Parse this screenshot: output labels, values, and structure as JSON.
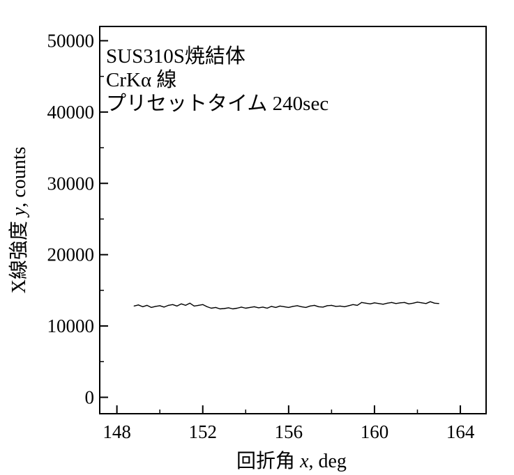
{
  "chart_data": {
    "type": "line",
    "annotations": [
      "SUS310S焼結体",
      "CrKα 線",
      "プリセットタイム 240sec"
    ],
    "xlabel": {
      "prefix": "回折角 ",
      "var": "x",
      "suffix": ", deg"
    },
    "ylabel": {
      "prefix": "X線強度 ",
      "var": "y",
      "suffix": ", counts"
    },
    "xlim": [
      147.2,
      165.2
    ],
    "ylim": [
      -2300,
      52000
    ],
    "xticks": [
      148,
      152,
      156,
      160,
      164
    ],
    "xtick_labels": [
      "148",
      "152",
      "156",
      "160",
      "164"
    ],
    "yticks": [
      0,
      10000,
      20000,
      30000,
      40000,
      50000
    ],
    "ytick_labels": [
      "0",
      "10000",
      "20000",
      "30000",
      "40000",
      "50000"
    ],
    "grid": false,
    "series": [
      {
        "x": [
          148.8,
          149.0,
          149.2,
          149.4,
          149.6,
          149.8,
          150.0,
          150.2,
          150.4,
          150.6,
          150.8,
          151.0,
          151.2,
          151.4,
          151.6,
          151.8,
          152.0,
          152.2,
          152.4,
          152.6,
          152.8,
          153.0,
          153.2,
          153.4,
          153.6,
          153.8,
          154.0,
          154.2,
          154.4,
          154.6,
          154.8,
          155.0,
          155.2,
          155.4,
          155.6,
          155.8,
          156.0,
          156.2,
          156.4,
          156.6,
          156.8,
          157.0,
          157.2,
          157.4,
          157.6,
          157.8,
          158.0,
          158.2,
          158.4,
          158.6,
          158.8,
          159.0,
          159.2,
          159.4,
          159.6,
          159.8,
          160.0,
          160.2,
          160.4,
          160.6,
          160.8,
          161.0,
          161.2,
          161.4,
          161.6,
          161.8,
          162.0,
          162.2,
          162.4,
          162.6,
          162.8,
          163.0
        ],
        "y": [
          12800,
          12950,
          12700,
          12900,
          12600,
          12750,
          12850,
          12650,
          12900,
          13000,
          12800,
          13100,
          12900,
          13200,
          12800,
          12900,
          13000,
          12700,
          12500,
          12600,
          12400,
          12450,
          12550,
          12400,
          12500,
          12650,
          12500,
          12600,
          12700,
          12550,
          12650,
          12500,
          12750,
          12600,
          12800,
          12700,
          12600,
          12750,
          12850,
          12700,
          12600,
          12800,
          12900,
          12700,
          12650,
          12850,
          12900,
          12750,
          12800,
          12700,
          12850,
          13000,
          12900,
          13300,
          13200,
          13100,
          13250,
          13150,
          13050,
          13200,
          13300,
          13150,
          13250,
          13300,
          13100,
          13200,
          13350,
          13250,
          13150,
          13400,
          13200,
          13150
        ]
      }
    ]
  }
}
